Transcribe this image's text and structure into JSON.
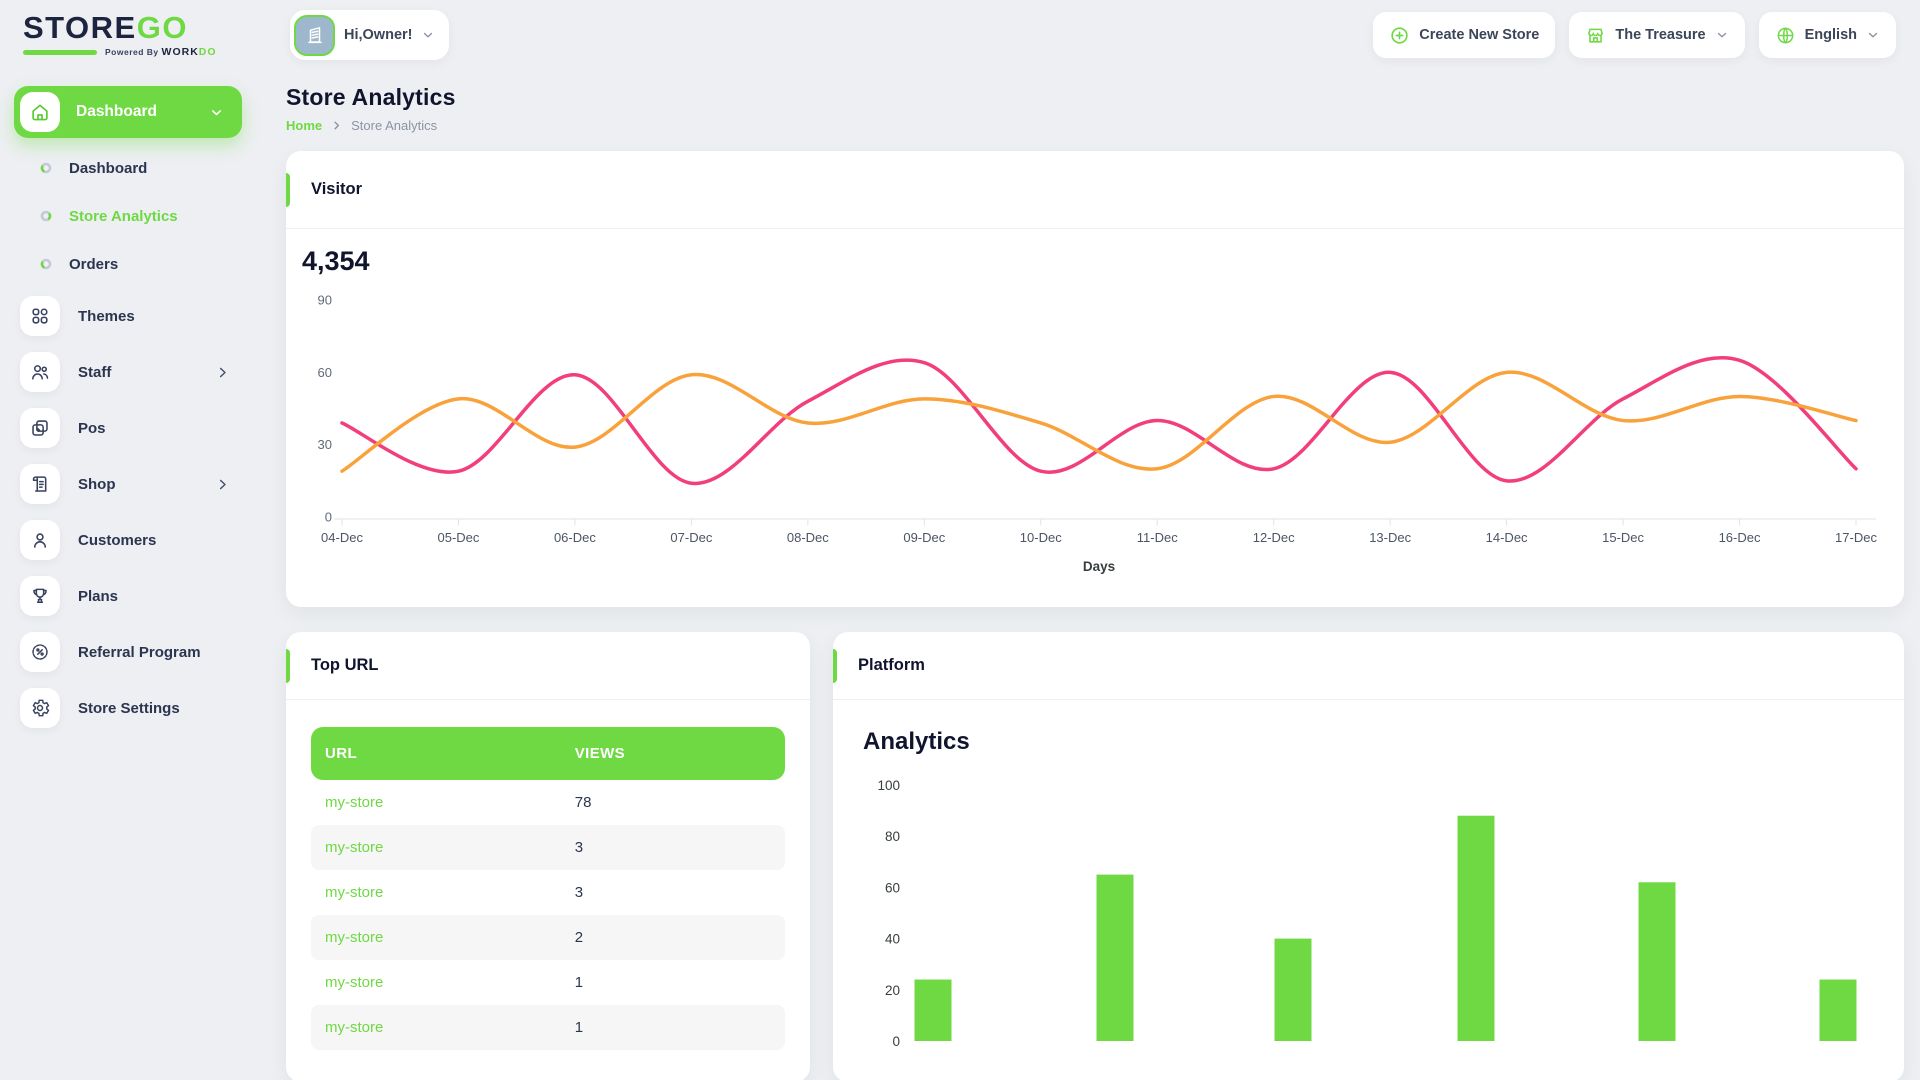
{
  "brand": {
    "logo_primary": "STORE",
    "logo_accent": "GO",
    "powered_prefix": "Powered By ",
    "powered_primary": "WORK",
    "powered_accent": "DO"
  },
  "topbar": {
    "user_chip": {
      "greeting": "Hi,Owner!",
      "avatar_icon": "building-icon"
    },
    "create_store_label": "Create New Store",
    "store_name": "The Treasure",
    "language": "English"
  },
  "sidebar": {
    "active": {
      "label": "Dashboard",
      "icon": "home-icon"
    },
    "sub_items": [
      {
        "label": "Dashboard",
        "active": false
      },
      {
        "label": "Store Analytics",
        "active": true
      },
      {
        "label": "Orders",
        "active": false
      }
    ],
    "items": [
      {
        "label": "Themes",
        "icon": "themes-icon",
        "chevron": false
      },
      {
        "label": "Staff",
        "icon": "staff-icon",
        "chevron": true
      },
      {
        "label": "Pos",
        "icon": "pos-icon",
        "chevron": false
      },
      {
        "label": "Shop",
        "icon": "shop-icon",
        "chevron": true
      },
      {
        "label": "Customers",
        "icon": "customers-icon",
        "chevron": false
      },
      {
        "label": "Plans",
        "icon": "plans-icon",
        "chevron": false
      },
      {
        "label": "Referral Program",
        "icon": "referral-icon",
        "chevron": false
      },
      {
        "label": "Store Settings",
        "icon": "settings-icon",
        "chevron": false
      }
    ]
  },
  "page": {
    "title": "Store Analytics",
    "breadcrumb": [
      "Home",
      "Store Analytics"
    ]
  },
  "visitor": {
    "title": "Visitor",
    "total": "4,354",
    "chart_data": {
      "type": "line",
      "x": [
        "04-Dec",
        "05-Dec",
        "06-Dec",
        "07-Dec",
        "08-Dec",
        "09-Dec",
        "10-Dec",
        "11-Dec",
        "12-Dec",
        "13-Dec",
        "14-Dec",
        "15-Dec",
        "16-Dec",
        "17-Dec"
      ],
      "series": [
        {
          "name": "visitors-pink",
          "color": "#f23e7a",
          "values": [
            39,
            19,
            59,
            14,
            48,
            64,
            19,
            40,
            20,
            60,
            15,
            49,
            65,
            20
          ]
        },
        {
          "name": "visitors-orange",
          "color": "#f9a13a",
          "values": [
            19,
            49,
            29,
            59,
            39,
            49,
            39,
            20,
            50,
            31,
            60,
            40,
            50,
            40
          ]
        }
      ],
      "xlabel": "Days",
      "ylim": [
        0,
        90
      ],
      "yticks": [
        0,
        30,
        60,
        90
      ],
      "grid": false,
      "legend": "none"
    }
  },
  "top_url": {
    "title": "Top URL",
    "columns": [
      "URL",
      "VIEWS"
    ],
    "rows": [
      {
        "url": "my-store",
        "views": "78"
      },
      {
        "url": "my-store",
        "views": "3"
      },
      {
        "url": "my-store",
        "views": "3"
      },
      {
        "url": "my-store",
        "views": "2"
      },
      {
        "url": "my-store",
        "views": "1"
      },
      {
        "url": "my-store",
        "views": "1"
      }
    ]
  },
  "platform": {
    "title": "Platform",
    "chart_title": "Analytics",
    "chart_data": {
      "type": "bar",
      "categories": [
        "",
        "",
        "",
        "",
        "",
        ""
      ],
      "values": [
        24,
        65,
        40,
        88,
        62,
        24
      ],
      "bar_color": "#6fd943",
      "ylim": [
        0,
        100
      ],
      "yticks": [
        0,
        20,
        40,
        60,
        80,
        100
      ],
      "grid": false
    }
  },
  "colors": {
    "primary": "#6fd943",
    "dark_navy": "#1c2440",
    "text_dark": "#11142d",
    "text_gray": "#8a94a6",
    "line_pink": "#f23e7a",
    "line_orange": "#f9a13a",
    "axis_line": "#e3e3e3"
  }
}
